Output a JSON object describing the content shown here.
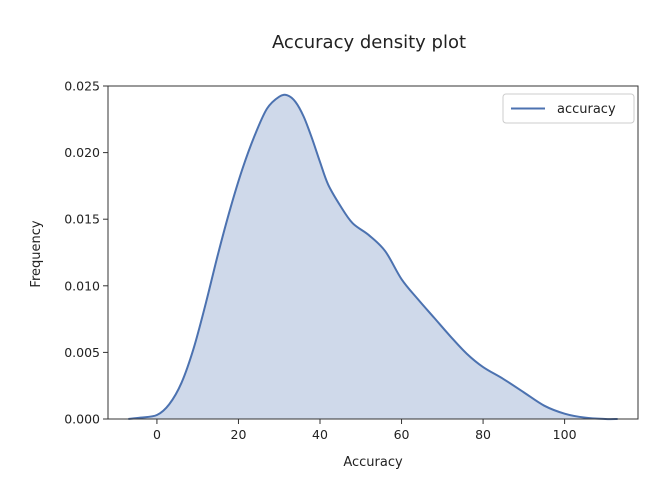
{
  "chart_data": {
    "type": "area",
    "title": "Accuracy density plot",
    "xlabel": "Accuracy",
    "ylabel": "Frequency",
    "xlim": [
      -12,
      118
    ],
    "ylim": [
      0,
      0.025
    ],
    "xticks": [
      0,
      20,
      40,
      60,
      80,
      100
    ],
    "xtick_labels": [
      "0",
      "20",
      "40",
      "60",
      "80",
      "100"
    ],
    "yticks": [
      0,
      0.005,
      0.01,
      0.015,
      0.02,
      0.025
    ],
    "ytick_labels": [
      "0.000",
      "0.005",
      "0.010",
      "0.015",
      "0.020",
      "0.025"
    ],
    "grid": false,
    "legend": {
      "position": "top-right",
      "entries": [
        "accuracy"
      ]
    },
    "series": [
      {
        "name": "accuracy",
        "color": "#4c72b0",
        "fill_color": "#4c72b0",
        "x": [
          -7,
          -4,
          0,
          3,
          6,
          9,
          12,
          15,
          18,
          21,
          24,
          27,
          30,
          32,
          34,
          36,
          38,
          40,
          42,
          45,
          48,
          52,
          56,
          60,
          64,
          68,
          72,
          76,
          80,
          85,
          90,
          95,
          100,
          105,
          110,
          113
        ],
        "y": [
          0.0,
          0.0001,
          0.0003,
          0.0011,
          0.0027,
          0.0053,
          0.0087,
          0.0124,
          0.0158,
          0.0188,
          0.0213,
          0.0233,
          0.0242,
          0.0243,
          0.0238,
          0.0227,
          0.0211,
          0.0193,
          0.0176,
          0.016,
          0.0147,
          0.0138,
          0.0126,
          0.0105,
          0.009,
          0.0076,
          0.0062,
          0.0049,
          0.0039,
          0.003,
          0.002,
          0.001,
          0.0004,
          0.0001,
          0.0,
          0.0
        ]
      }
    ]
  }
}
